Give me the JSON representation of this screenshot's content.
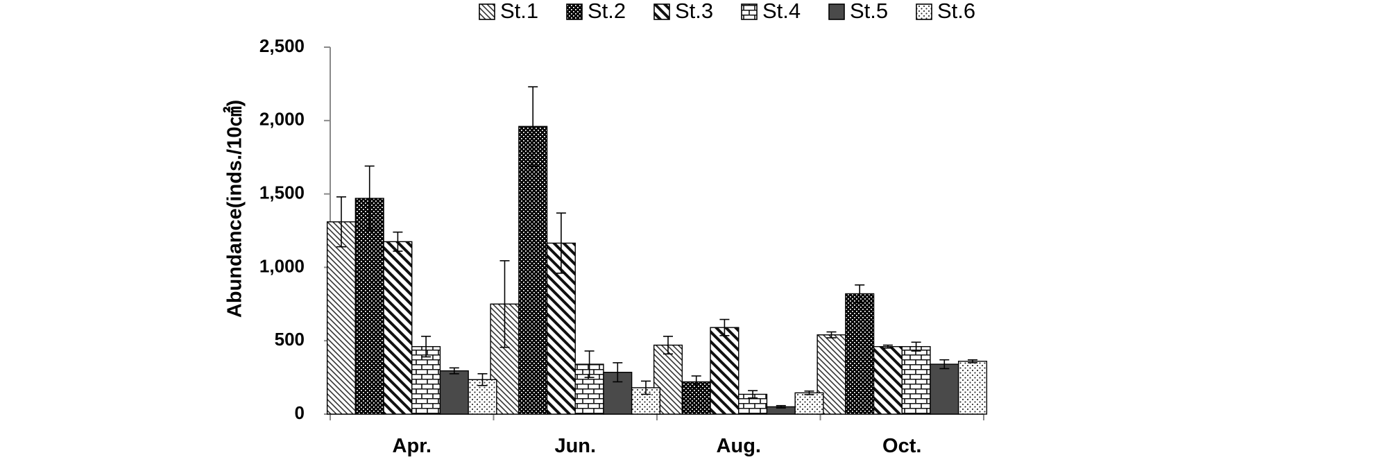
{
  "chart_data": {
    "type": "bar",
    "title": "",
    "xlabel": "",
    "ylabel": "Abundance(inds./10㎠)",
    "ylim": [
      0,
      2500
    ],
    "yticks": [
      0,
      500,
      1000,
      1500,
      2000,
      2500
    ],
    "ytick_labels": [
      "0",
      "500",
      "1,000",
      "1,500",
      "2,000",
      "2,500"
    ],
    "grid": false,
    "legend_position": "top",
    "categories": [
      "Apr.",
      "Jun.",
      "Aug.",
      "Oct."
    ],
    "series": [
      {
        "name": "St.1",
        "pattern": "diag-light",
        "values": [
          1310,
          750,
          470,
          540
        ],
        "errors": [
          170,
          295,
          60,
          20
        ]
      },
      {
        "name": "St.2",
        "pattern": "black-dots",
        "values": [
          1470,
          1960,
          220,
          820
        ],
        "errors": [
          220,
          270,
          40,
          60
        ]
      },
      {
        "name": "St.3",
        "pattern": "diag-bold",
        "values": [
          1175,
          1165,
          590,
          460
        ],
        "errors": [
          65,
          205,
          55,
          10
        ]
      },
      {
        "name": "St.4",
        "pattern": "brick",
        "values": [
          460,
          340,
          135,
          460
        ],
        "errors": [
          70,
          90,
          25,
          30
        ]
      },
      {
        "name": "St.5",
        "pattern": "dark-solid",
        "values": [
          295,
          285,
          50,
          340
        ],
        "errors": [
          20,
          65,
          8,
          30
        ]
      },
      {
        "name": "St.6",
        "pattern": "light-dots",
        "values": [
          235,
          180,
          145,
          360
        ],
        "errors": [
          40,
          45,
          12,
          10
        ]
      }
    ]
  }
}
